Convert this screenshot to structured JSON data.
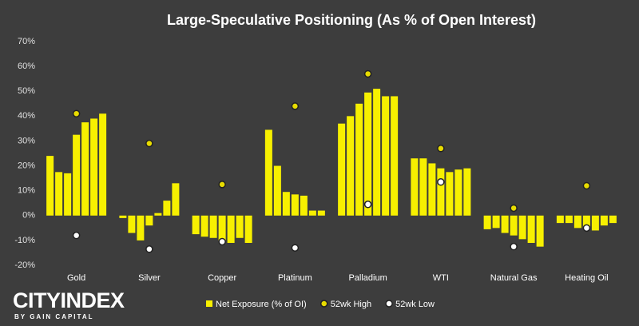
{
  "chart_data": {
    "type": "bar",
    "title": "Large-Speculative Positioning (As % of Open Interest)",
    "categories": [
      "Gold",
      "Silver",
      "Copper",
      "Platinum",
      "Palladium",
      "WTI",
      "Natural Gas",
      "Heating Oil"
    ],
    "series": [
      {
        "name": "Net Exposure (% of OI)",
        "type": "bar",
        "color": "#f7f000",
        "values": [
          [
            24,
            17.5,
            17,
            32.5,
            37.5,
            39,
            41
          ],
          [
            -1,
            -7,
            -10,
            -4,
            1,
            6,
            13
          ],
          [
            -7.5,
            -8.5,
            -9,
            -10,
            -11,
            -9,
            -11
          ],
          [
            34.5,
            20,
            9.5,
            8.5,
            8,
            2,
            2
          ],
          [
            37,
            40,
            45,
            49.5,
            51,
            48,
            48
          ],
          [
            23,
            23,
            21,
            19,
            17.5,
            18.5,
            19
          ],
          [
            -5.5,
            -5,
            -7,
            -8,
            -9.5,
            -11,
            -12.5
          ],
          [
            -3,
            -3,
            -5,
            -5,
            -6,
            -4,
            -3
          ]
        ]
      },
      {
        "name": "52wk High",
        "type": "marker",
        "color": "#e8dc00",
        "values": [
          41,
          29,
          12.5,
          44,
          57,
          27,
          3,
          12
        ]
      },
      {
        "name": "52wk Low",
        "type": "marker",
        "color": "#ffffff",
        "values": [
          -8,
          -13.5,
          -10.5,
          -13,
          4.5,
          13.5,
          -12.5,
          -5
        ]
      }
    ],
    "ylim": [
      -20,
      70
    ],
    "yticks": [
      {
        "value": -20,
        "label": "-20%"
      },
      {
        "value": -10,
        "label": "-10%"
      },
      {
        "value": 0,
        "label": "0%"
      },
      {
        "value": 10,
        "label": "10%"
      },
      {
        "value": 20,
        "label": "20%"
      },
      {
        "value": 30,
        "label": "30%"
      },
      {
        "value": 40,
        "label": "40%"
      },
      {
        "value": 50,
        "label": "50%"
      },
      {
        "value": 60,
        "label": "60%"
      },
      {
        "value": 70,
        "label": "70%"
      }
    ],
    "grid": false,
    "legend": "bottom"
  },
  "logo": {
    "name": "CITYINDEX",
    "tagline": "BY GAIN CAPITAL"
  }
}
